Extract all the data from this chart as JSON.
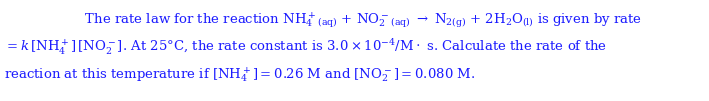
{
  "background_color": "#ffffff",
  "text_color": "#1a1aff",
  "fig_width": 7.09,
  "fig_height": 1.01,
  "dpi": 100,
  "fontsize": 9.5,
  "line1": "    The rate law for the reaction $\\mathrm{NH_4^+}_{\\mathrm{(aq)}}$ + $\\mathrm{NO_2^-}_{\\mathrm{(aq)}}$ $\\rightarrow$ $\\mathrm{N_{2(g)}}$ + $\\mathrm{2H_2O_{(l)}}$ is given by rate",
  "line2": "$= k\\,[\\mathrm{NH_4^+}]\\,[\\mathrm{NO_2^-}]$. At 25°C, the rate constant is $3.0 \\times 10^{-4}\\mathrm{/M} \\cdot$ s. Calculate the rate of the",
  "line3": "reaction at this temperature if $[\\mathrm{NH_4^+}] = 0.26$ M and $[\\mathrm{NO_2^-}] = 0.080$ M."
}
